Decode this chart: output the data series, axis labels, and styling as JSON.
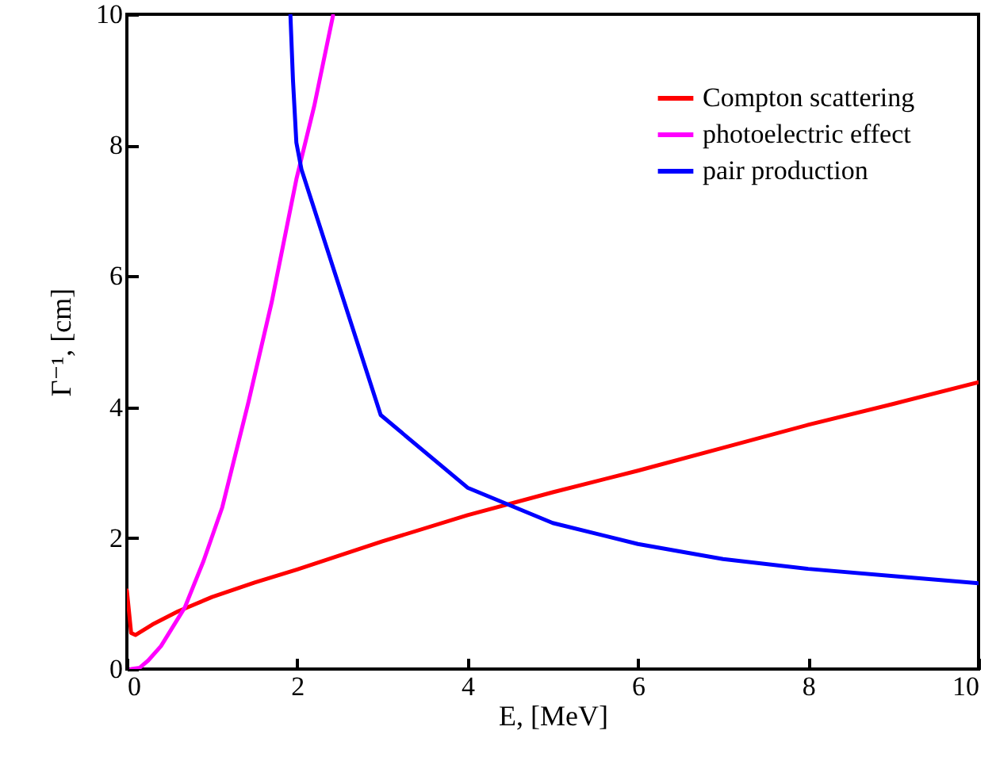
{
  "chart_data": {
    "type": "line",
    "xlabel": "E, [MeV]",
    "ylabel": "Γ⁻¹, [cm]",
    "xlim": [
      0,
      10
    ],
    "ylim": [
      0,
      10
    ],
    "xticks": [
      0,
      2,
      4,
      6,
      8,
      10
    ],
    "yticks": [
      0,
      2,
      4,
      6,
      8,
      10
    ],
    "grid": false,
    "legend": "top right",
    "marker": "none",
    "line_style": "solid",
    "series": [
      {
        "name": "Compton scattering",
        "color": "#ff0000",
        "x": [
          0,
          0.05,
          0.1,
          0.3,
          0.6,
          1,
          1.5,
          2,
          3,
          4,
          5,
          6,
          7,
          8,
          9,
          10
        ],
        "values": [
          1.2,
          0.55,
          0.52,
          0.68,
          0.88,
          1.1,
          1.32,
          1.52,
          1.95,
          2.35,
          2.7,
          3.03,
          3.38,
          3.73,
          4.05,
          4.38
        ]
      },
      {
        "name": "photoelectric effect",
        "color": "#ff00ff",
        "x": [
          0.05,
          0.15,
          0.25,
          0.4,
          0.68,
          0.9,
          1.12,
          1.43,
          1.7,
          1.99,
          2.2,
          2.42
        ],
        "values": [
          0,
          0.02,
          0.13,
          0.35,
          0.94,
          1.65,
          2.47,
          4.09,
          5.6,
          7.48,
          8.6,
          9.98
        ]
      },
      {
        "name": "pair production",
        "color": "#0000ff",
        "x": [
          1.92,
          1.95,
          1.99,
          2.05,
          2.98,
          4,
          5,
          6,
          7,
          8,
          9,
          10
        ],
        "values": [
          10,
          9.0,
          8.04,
          7.63,
          3.88,
          2.77,
          2.23,
          1.91,
          1.68,
          1.53,
          1.42,
          1.31
        ]
      }
    ]
  }
}
